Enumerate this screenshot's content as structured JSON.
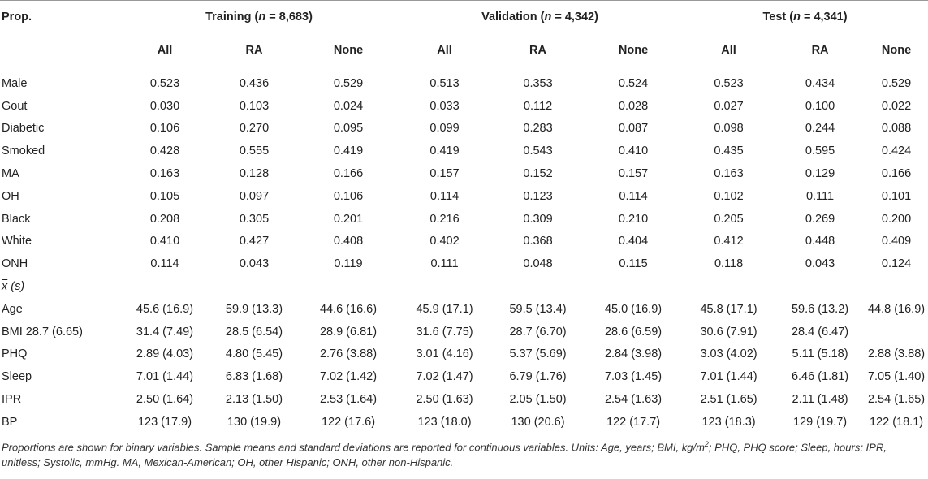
{
  "header": {
    "prop_label": "Prop.",
    "groups": [
      {
        "name": "Training",
        "n_label": "n",
        "n_value": "= 8,683"
      },
      {
        "name": "Validation",
        "n_label": "n",
        "n_value": "= 4,342"
      },
      {
        "name": "Test",
        "n_label": "n",
        "n_value": "= 4,341"
      }
    ],
    "subcols": [
      "All",
      "RA",
      "None"
    ]
  },
  "binary_rows": [
    {
      "label": "Male",
      "values": [
        "0.523",
        "0.436",
        "0.529",
        "0.513",
        "0.353",
        "0.524",
        "0.523",
        "0.434",
        "0.529"
      ]
    },
    {
      "label": "Gout",
      "values": [
        "0.030",
        "0.103",
        "0.024",
        "0.033",
        "0.112",
        "0.028",
        "0.027",
        "0.100",
        "0.022"
      ]
    },
    {
      "label": "Diabetic",
      "values": [
        "0.106",
        "0.270",
        "0.095",
        "0.099",
        "0.283",
        "0.087",
        "0.098",
        "0.244",
        "0.088"
      ]
    },
    {
      "label": "Smoked",
      "values": [
        "0.428",
        "0.555",
        "0.419",
        "0.419",
        "0.543",
        "0.410",
        "0.435",
        "0.595",
        "0.424"
      ]
    },
    {
      "label": "MA",
      "values": [
        "0.163",
        "0.128",
        "0.166",
        "0.157",
        "0.152",
        "0.157",
        "0.163",
        "0.129",
        "0.166"
      ]
    },
    {
      "label": "OH",
      "values": [
        "0.105",
        "0.097",
        "0.106",
        "0.114",
        "0.123",
        "0.114",
        "0.102",
        "0.111",
        "0.101"
      ]
    },
    {
      "label": "Black",
      "values": [
        "0.208",
        "0.305",
        "0.201",
        "0.216",
        "0.309",
        "0.210",
        "0.205",
        "0.269",
        "0.200"
      ]
    },
    {
      "label": "White",
      "values": [
        "0.410",
        "0.427",
        "0.408",
        "0.402",
        "0.368",
        "0.404",
        "0.412",
        "0.448",
        "0.409"
      ]
    },
    {
      "label": "ONH",
      "values": [
        "0.114",
        "0.043",
        "0.119",
        "0.111",
        "0.048",
        "0.115",
        "0.118",
        "0.043",
        "0.124"
      ]
    }
  ],
  "continuous_section": {
    "symbol": "x",
    "suffix": "(s)"
  },
  "continuous_rows": [
    {
      "label": "Age",
      "values": [
        "45.6 (16.9)",
        "59.9 (13.3)",
        "44.6 (16.6)",
        "45.9 (17.1)",
        "59.5 (13.4)",
        "45.0 (16.9)",
        "45.8 (17.1)",
        "59.6 (13.2)",
        "44.8 (16.9)"
      ]
    },
    {
      "label": "BMI 28.7 (6.65)",
      "values": [
        "31.4 (7.49)",
        "28.5 (6.54)",
        "28.9 (6.81)",
        "31.6 (7.75)",
        "28.7 (6.70)",
        "28.6 (6.59)",
        "30.6 (7.91)",
        "28.4 (6.47)",
        ""
      ]
    },
    {
      "label": "PHQ",
      "values": [
        "2.89 (4.03)",
        "4.80 (5.45)",
        "2.76 (3.88)",
        "3.01 (4.16)",
        "5.37 (5.69)",
        "2.84 (3.98)",
        "3.03 (4.02)",
        "5.11 (5.18)",
        "2.88 (3.88)"
      ]
    },
    {
      "label": "Sleep",
      "values": [
        "7.01 (1.44)",
        "6.83 (1.68)",
        "7.02 (1.42)",
        "7.02 (1.47)",
        "6.79 (1.76)",
        "7.03 (1.45)",
        "7.01 (1.44)",
        "6.46 (1.81)",
        "7.05 (1.40)"
      ]
    },
    {
      "label": "IPR",
      "values": [
        "2.50 (1.64)",
        "2.13 (1.50)",
        "2.53 (1.64)",
        "2.50 (1.63)",
        "2.05 (1.50)",
        "2.54 (1.63)",
        "2.51 (1.65)",
        "2.11 (1.48)",
        "2.54 (1.65)"
      ]
    },
    {
      "label": "BP",
      "values": [
        "123 (17.9)",
        "130 (19.9)",
        "122 (17.6)",
        "123 (18.0)",
        "130 (20.6)",
        "122 (17.7)",
        "123 (18.3)",
        "129 (19.7)",
        "122 (18.1)"
      ]
    }
  ],
  "footnote": {
    "part1": "Proportions are shown for binary variables. Sample means and standard deviations are reported for continuous variables. Units: Age, years; BMI, kg/m",
    "sup": "2",
    "part2": "; PHQ, PHQ score; Sleep, hours; IPR, unitless; Systolic, mmHg. MA, Mexican-American; OH, other Hispanic; ONH, other non-Hispanic."
  }
}
